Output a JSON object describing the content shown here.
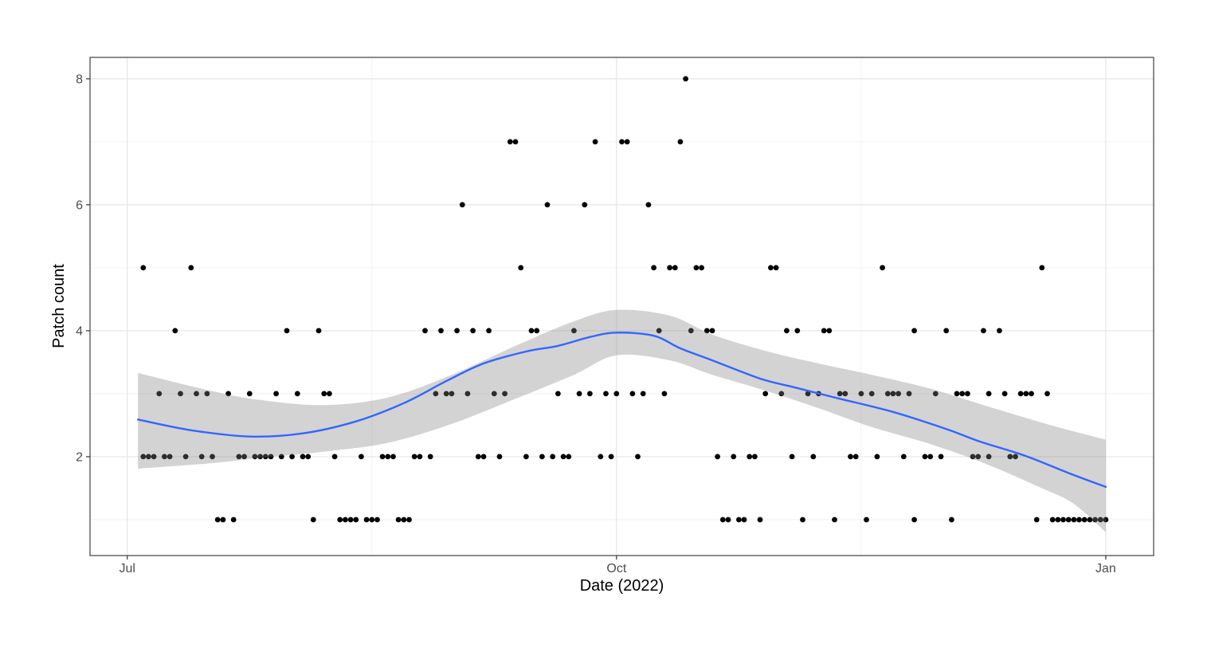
{
  "chart_data": {
    "type": "scatter",
    "title": "",
    "xlabel": "Date (2022)",
    "ylabel": "Patch count",
    "x_unit": "days since Jul 1 2022",
    "xlim": [
      -7,
      193
    ],
    "ylim": [
      0.43,
      8.34
    ],
    "grid": true,
    "legend": "none",
    "point_color": "#000000",
    "line_color": "#3366FF",
    "band_color": "rgba(128,128,128,0.35)",
    "grid_major_color": "#E5E5E5",
    "grid_minor_color": "#F2F2F2",
    "panel_border_color": "#404040",
    "tick_label_color": "#4D4D4D",
    "x_major_ticks": [
      {
        "day": 0,
        "label": "Jul"
      },
      {
        "day": 92,
        "label": "Oct"
      },
      {
        "day": 184,
        "label": "Jan"
      }
    ],
    "x_minor_ticks": [
      46,
      138
    ],
    "y_major_ticks": [
      {
        "value": 2,
        "label": "2"
      },
      {
        "value": 4,
        "label": "4"
      },
      {
        "value": 6,
        "label": "6"
      },
      {
        "value": 8,
        "label": "8"
      }
    ],
    "y_minor_ticks": [
      1,
      3,
      5,
      7
    ],
    "points_by_count": {
      "1": [
        17,
        18,
        20,
        35,
        40,
        41,
        42,
        43,
        45,
        46,
        47,
        51,
        52,
        53,
        112,
        113,
        115,
        116,
        119,
        127,
        133,
        139,
        148,
        155,
        171,
        174,
        175,
        176,
        177,
        178,
        179,
        180,
        181,
        182,
        183,
        184
      ],
      "2": [
        3,
        4,
        5,
        7,
        8,
        11,
        14,
        16,
        21,
        22,
        24,
        25,
        26,
        27,
        29,
        31,
        33,
        34,
        39,
        44,
        48,
        49,
        50,
        54,
        55,
        57,
        66,
        67,
        70,
        75,
        78,
        80,
        82,
        83,
        89,
        91,
        96,
        111,
        114,
        117,
        118,
        125,
        129,
        136,
        137,
        141,
        146,
        150,
        151,
        153,
        159,
        160,
        162,
        166,
        167
      ],
      "3": [
        6,
        10,
        13,
        15,
        19,
        23,
        28,
        32,
        37,
        38,
        58,
        60,
        61,
        64,
        69,
        71,
        81,
        85,
        87,
        90,
        92,
        95,
        97,
        101,
        120,
        123,
        128,
        130,
        134,
        135,
        138,
        140,
        143,
        144,
        145,
        147,
        152,
        156,
        157,
        158,
        162,
        165,
        168,
        169,
        170,
        173
      ],
      "4": [
        9,
        30,
        36,
        56,
        59,
        62,
        65,
        68,
        76,
        77,
        84,
        100,
        106,
        109,
        110,
        124,
        126,
        131,
        132,
        148,
        154,
        161,
        164
      ],
      "5": [
        3,
        12,
        74,
        99,
        102,
        103,
        107,
        108,
        121,
        122,
        142,
        172
      ],
      "6": [
        63,
        79,
        86,
        98
      ],
      "7": [
        72,
        73,
        88,
        93,
        94,
        104
      ],
      "8": [
        105
      ]
    },
    "smooth_line": [
      [
        2,
        2.59
      ],
      [
        12,
        2.42
      ],
      [
        23,
        2.32
      ],
      [
        33,
        2.37
      ],
      [
        43,
        2.56
      ],
      [
        52,
        2.85
      ],
      [
        60,
        3.2
      ],
      [
        67,
        3.48
      ],
      [
        75,
        3.67
      ],
      [
        81,
        3.76
      ],
      [
        87,
        3.9
      ],
      [
        92,
        3.97
      ],
      [
        99,
        3.92
      ],
      [
        104,
        3.72
      ],
      [
        110,
        3.53
      ],
      [
        119,
        3.24
      ],
      [
        125,
        3.11
      ],
      [
        134,
        2.92
      ],
      [
        144,
        2.71
      ],
      [
        154,
        2.44
      ],
      [
        160,
        2.25
      ],
      [
        169,
        2.01
      ],
      [
        177,
        1.74
      ],
      [
        184,
        1.52
      ]
    ],
    "confidence_band": [
      [
        2,
        1.81,
        3.33
      ],
      [
        15,
        1.89,
        3.06
      ],
      [
        25,
        1.98,
        2.9
      ],
      [
        37,
        2.08,
        2.82
      ],
      [
        49,
        2.22,
        2.94
      ],
      [
        61,
        2.52,
        3.3
      ],
      [
        73,
        2.92,
        3.76
      ],
      [
        84,
        3.3,
        4.15
      ],
      [
        92,
        3.61,
        4.33
      ],
      [
        102,
        3.53,
        4.24
      ],
      [
        110,
        3.3,
        3.94
      ],
      [
        120,
        3.05,
        3.68
      ],
      [
        130,
        2.77,
        3.48
      ],
      [
        140,
        2.47,
        3.3
      ],
      [
        151,
        2.2,
        3.08
      ],
      [
        161,
        1.9,
        2.82
      ],
      [
        172,
        1.5,
        2.54
      ],
      [
        178,
        1.25,
        2.4
      ],
      [
        184,
        0.8,
        2.27
      ]
    ]
  }
}
